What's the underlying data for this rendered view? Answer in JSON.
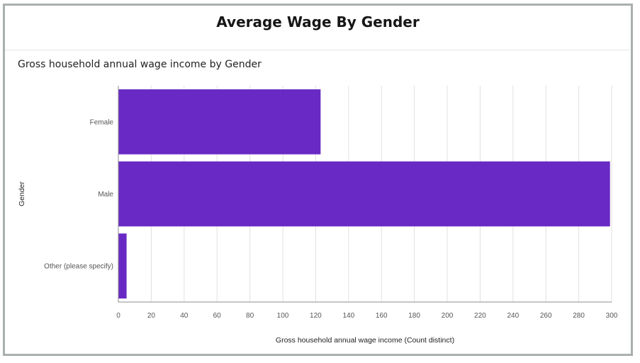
{
  "dashboard_title": "Average Wage By Gender",
  "panel_title": "Gross household annual wage income by Gender",
  "chart_data": {
    "type": "bar",
    "orientation": "horizontal",
    "categories": [
      "Female",
      "Male",
      "Other (please specify)"
    ],
    "values": [
      123,
      299,
      5
    ],
    "xlabel": "Gross household annual wage income (Count distinct)",
    "ylabel": "Gender",
    "xlim": [
      0,
      300
    ],
    "xticks": [
      0,
      20,
      40,
      60,
      80,
      100,
      120,
      140,
      160,
      180,
      200,
      220,
      240,
      260,
      280,
      300
    ],
    "grid": "vertical",
    "bar_color": "#6929c4"
  }
}
